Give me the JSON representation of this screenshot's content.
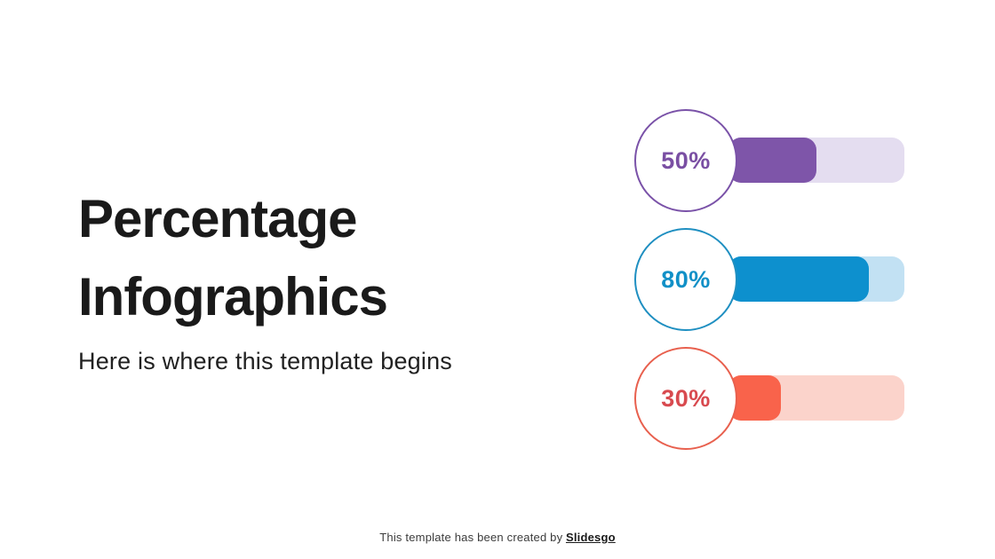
{
  "slide": {
    "title": "Percentage Infographics",
    "subtitle": "Here is where this template begins",
    "footer": {
      "text": "This template has been created by",
      "brand": "Slidesgo"
    },
    "background_color": "#ffffff",
    "title_color": "#1a1a1a"
  },
  "chart_data": {
    "type": "bar",
    "orientation": "horizontal",
    "title": "Percentage Infographics",
    "value_range": [
      0,
      100
    ],
    "items": [
      {
        "label": "50%",
        "value": 50,
        "bar_color": "#7e55a9",
        "track_color": "#e4ddf0",
        "ring_color": "#7a52a8",
        "label_color": "#7a4fa3"
      },
      {
        "label": "80%",
        "value": 80,
        "bar_color": "#0d90ce",
        "track_color": "#c2e1f3",
        "ring_color": "#1f8fc1",
        "label_color": "#1190c7"
      },
      {
        "label": "30%",
        "value": 30,
        "bar_color": "#f9634b",
        "track_color": "#fbd3cb",
        "ring_color": "#e8604e",
        "label_color": "#d84a4f"
      }
    ]
  }
}
